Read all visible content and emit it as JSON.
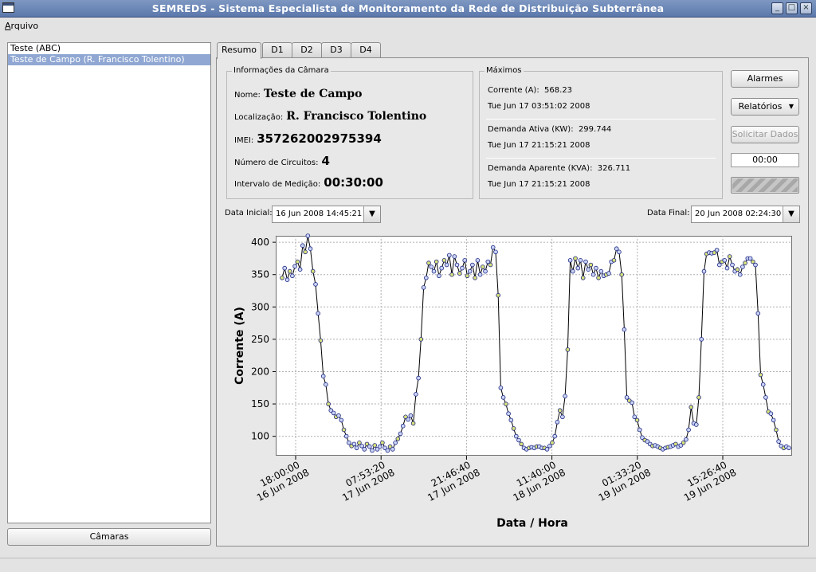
{
  "window": {
    "title": "SEMREDS - Sistema Especialista de Monitoramento da Rede de Distribuição Subterrânea",
    "minimize_icon": "minimize-icon",
    "maximize_icon": "maximize-icon",
    "close_icon": "close-icon"
  },
  "menu": {
    "file_first": "A",
    "file_rest": "rquivo"
  },
  "sidebar": {
    "items": [
      {
        "label": "Teste (ABC)",
        "selected": false
      },
      {
        "label": "Teste de Campo (R. Francisco Tolentino)",
        "selected": true
      }
    ],
    "cameras_button": "Câmaras"
  },
  "tabs": [
    "Resumo",
    "D1",
    "D2",
    "D3",
    "D4"
  ],
  "camera_info": {
    "title": "Informações da Câmara",
    "name_label": "Nome:",
    "name_value": "Teste de Campo",
    "location_label": "Localização:",
    "location_value": "R. Francisco Tolentino",
    "imei_label": "IMEI:",
    "imei_value": "357262002975394",
    "circuits_label": "Número de Circuitos:",
    "circuits_value": "4",
    "interval_label": "Intervalo de Medição:",
    "interval_value": "00:30:00"
  },
  "maximos": {
    "title": "Máximos",
    "current_label": "Corrente (A):",
    "current_value": "568.23",
    "current_date": "Tue Jun 17 03:51:02 2008",
    "active_label": "Demanda Ativa (KW):",
    "active_value": "299.744",
    "active_date": "Tue Jun 17 21:15:21 2008",
    "apparent_label": "Demanda Aparente (KVA):",
    "apparent_value": "326.711",
    "apparent_date": "Tue Jun 17 21:15:21 2008"
  },
  "actions": {
    "alarms": "Alarmes",
    "reports": "Relatórios",
    "request_data": "Solicitar Dados",
    "timer": "00:00",
    "progress": 1.0
  },
  "dates": {
    "start_label": "Data Inicial:",
    "start_value": "16 Jun 2008 14:45:21",
    "end_label": "Data Final:",
    "end_value": "20 Jun 2008 02:24:30"
  },
  "chart_data": {
    "type": "line",
    "xlabel": "Data / Hora",
    "ylabel": "Corrente (A)",
    "ylim": [
      70,
      410
    ],
    "yticks": [
      100,
      150,
      200,
      250,
      300,
      350,
      400
    ],
    "xticks": [
      {
        "time": "18:00:00",
        "date": "16 Jun 2008"
      },
      {
        "time": "07:53:20",
        "date": "17 Jun 2008"
      },
      {
        "time": "21:46:40",
        "date": "17 Jun 2008"
      },
      {
        "time": "11:40:00",
        "date": "18 Jun 2008"
      },
      {
        "time": "01:33:20",
        "date": "19 Jun 2008"
      },
      {
        "time": "15:26:40",
        "date": "19 Jun 2008"
      }
    ],
    "grid": true,
    "series": [
      {
        "values": [
          345,
          360,
          342,
          355,
          348,
          363,
          370,
          358,
          395,
          385,
          410,
          390,
          355,
          335,
          290,
          248,
          193,
          180,
          150,
          140,
          136,
          130,
          132,
          125,
          110,
          100,
          90,
          85,
          88,
          82,
          90,
          85,
          80,
          88,
          84,
          78,
          86,
          80,
          84,
          90,
          82,
          78,
          84,
          80,
          90,
          96,
          104,
          116,
          130,
          126,
          132,
          120,
          165,
          190,
          250,
          330,
          345,
          368,
          362,
          355,
          370,
          348,
          360,
          372,
          365,
          380,
          350,
          378,
          365,
          352,
          360,
          372,
          348,
          355,
          365,
          345,
          372,
          350,
          362,
          355,
          370,
          365,
          392,
          385,
          318,
          175,
          160,
          150,
          135,
          125,
          112,
          100,
          94,
          88,
          82,
          80,
          82,
          83,
          82,
          84,
          84,
          82,
          82,
          80,
          85,
          90,
          100,
          122,
          140,
          130,
          162,
          234,
          372,
          355,
          375,
          360,
          372,
          345,
          370,
          358,
          365,
          350,
          360,
          345,
          355,
          348,
          350,
          352,
          370,
          372,
          390,
          385,
          350,
          265,
          160,
          155,
          152,
          130,
          125,
          110,
          98,
          94,
          92,
          88,
          85,
          86,
          84,
          82,
          80,
          82,
          83,
          84,
          86,
          88,
          84,
          86,
          90,
          95,
          110,
          145,
          120,
          118,
          160,
          250,
          355,
          382,
          384,
          383,
          384,
          388,
          365,
          370,
          372,
          360,
          378,
          365,
          355,
          358,
          350,
          362,
          368,
          375,
          375,
          370,
          365,
          290,
          195,
          180,
          160,
          138,
          135,
          125,
          110,
          92,
          85,
          82,
          84,
          82
        ]
      }
    ]
  }
}
